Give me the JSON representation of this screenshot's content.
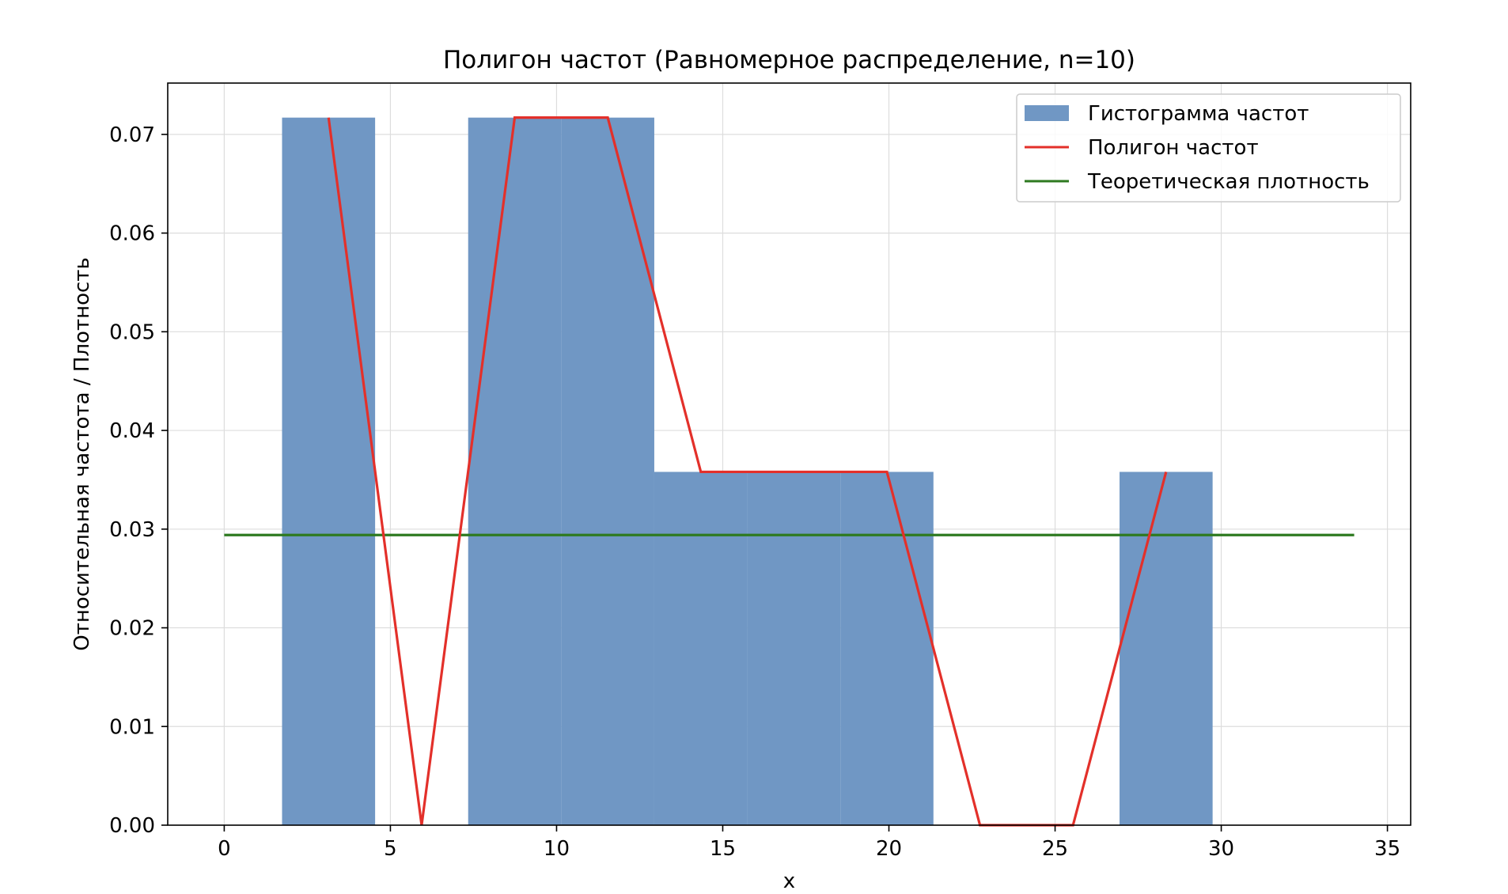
{
  "chart_data": {
    "type": "bar",
    "title": "Полигон частот (Равномерное распределение, n=10)",
    "xlabel": "x",
    "ylabel": "Относительная частота / Плотность",
    "xlim": [
      -1.7,
      35.7
    ],
    "ylim": [
      0.0,
      0.0752
    ],
    "xticks": [
      0,
      5,
      10,
      15,
      20,
      25,
      30,
      35
    ],
    "xtick_labels": [
      "0",
      "5",
      "10",
      "15",
      "20",
      "25",
      "30",
      "35"
    ],
    "yticks": [
      0.0,
      0.01,
      0.02,
      0.03,
      0.04,
      0.05,
      0.06,
      0.07
    ],
    "ytick_labels": [
      "0.00",
      "0.01",
      "0.02",
      "0.03",
      "0.04",
      "0.05",
      "0.06",
      "0.07"
    ],
    "grid": true,
    "legend_position": "top-right",
    "colors": {
      "histogram": "#7097c4",
      "polygon": "#e3302a",
      "theoretical": "#2e7a20",
      "grid": "#dddddd"
    },
    "histogram": {
      "name": "Гистограмма частот",
      "bins": [
        {
          "x0": 1.74,
          "x1": 4.54,
          "value": 0.0717
        },
        {
          "x0": 4.54,
          "x1": 7.34,
          "value": 0.0
        },
        {
          "x0": 7.34,
          "x1": 10.14,
          "value": 0.0717
        },
        {
          "x0": 10.14,
          "x1": 12.94,
          "value": 0.0717
        },
        {
          "x0": 12.94,
          "x1": 15.74,
          "value": 0.0358
        },
        {
          "x0": 15.74,
          "x1": 18.54,
          "value": 0.0358
        },
        {
          "x0": 18.54,
          "x1": 21.34,
          "value": 0.0358
        },
        {
          "x0": 21.34,
          "x1": 24.14,
          "value": 0.0
        },
        {
          "x0": 24.14,
          "x1": 26.94,
          "value": 0.0
        },
        {
          "x0": 26.94,
          "x1": 29.74,
          "value": 0.0358
        }
      ]
    },
    "polygon": {
      "name": "Полигон частот",
      "x": [
        3.14,
        5.94,
        8.74,
        11.54,
        14.34,
        17.14,
        19.94,
        22.74,
        25.54,
        28.34
      ],
      "y": [
        0.0717,
        0.0,
        0.0717,
        0.0717,
        0.0358,
        0.0358,
        0.0358,
        0.0,
        0.0,
        0.0358
      ]
    },
    "theoretical": {
      "name": "Теоретическая плотность",
      "x": [
        0,
        34
      ],
      "y": [
        0.0294,
        0.0294
      ]
    }
  }
}
